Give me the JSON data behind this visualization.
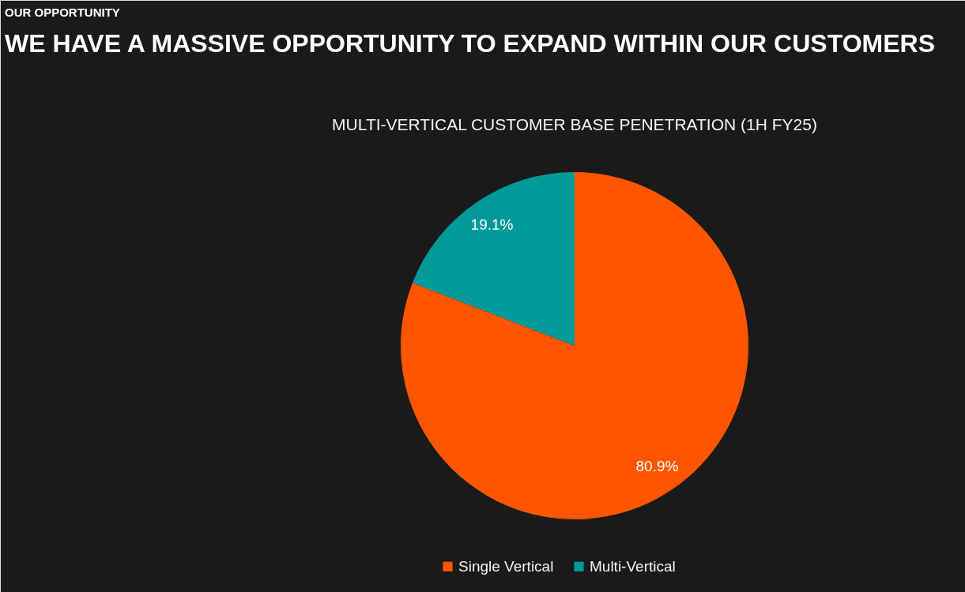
{
  "chart_data": {
    "type": "pie",
    "title": "WE HAVE A MASSIVE OPPORTUNITY TO EXPAND WITHIN OUR CUSTOMERS",
    "subtitle": "MULTI-VERTICAL CUSTOMER BASE PENETRATION (1H FY25)",
    "annotations": [
      "OUR OPPORTUNITY"
    ],
    "categories": [
      "Single Vertical",
      "Multi-Vertical"
    ],
    "values": [
      80.9,
      19.1
    ],
    "colors": [
      "#ff5500",
      "#009b98"
    ],
    "value_labels": [
      "80.9%",
      "19.1%"
    ],
    "legend": "bottom"
  }
}
